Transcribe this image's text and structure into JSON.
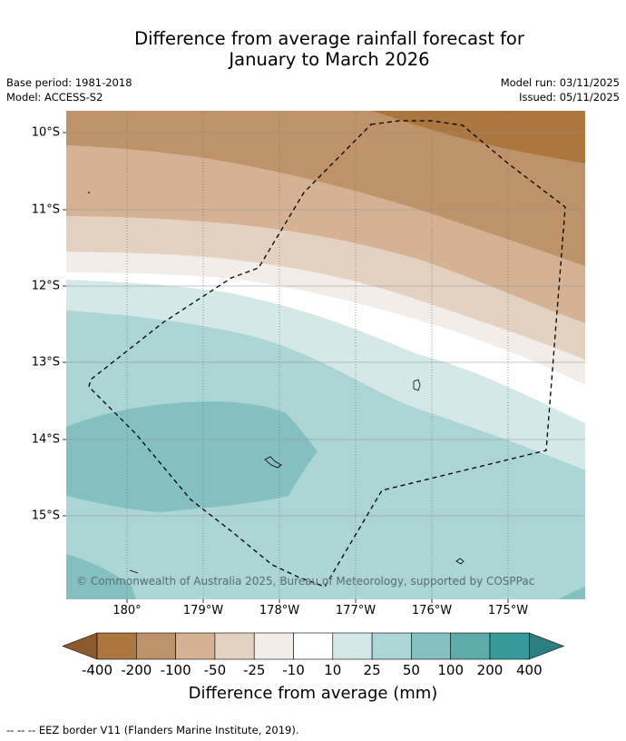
{
  "title_line1": "Difference from average rainfall forecast for",
  "title_line2": "January to March 2026",
  "base_period": "Base period: 1981-2018",
  "model": "Model: ACCESS-S2",
  "model_run": "Model run: 03/11/2025",
  "issued": "Issued: 05/11/2025",
  "credit": "© Commonwealth of Australia 2025, Bureau of Meteorology, supported by COSPPac",
  "lat_labels": [
    "10°S",
    "11°S",
    "12°S",
    "13°S",
    "14°S",
    "15°S"
  ],
  "lon_labels": [
    "180°",
    "179°W",
    "178°W",
    "177°W",
    "176°W",
    "175°W"
  ],
  "colorbar": {
    "title": "Difference from average (mm)",
    "ticks": [
      "-400",
      "-200",
      "-100",
      "-50",
      "-25",
      "-10",
      "10",
      "25",
      "50",
      "100",
      "200",
      "400"
    ],
    "colors": [
      "#8c5a2c",
      "#ac763f",
      "#bf936a",
      "#d4b293",
      "#e3d1c1",
      "#f2ede8",
      "#ffffff",
      "#d4e8e8",
      "#acd5d5",
      "#85c0c1",
      "#5eabac",
      "#359a99",
      "#2b7f7e"
    ]
  },
  "footnote": "--  --  -- EEZ border V11 (Flanders Marine Institute, 2019).",
  "icons": {
    "island": "island-outline-icon"
  }
}
